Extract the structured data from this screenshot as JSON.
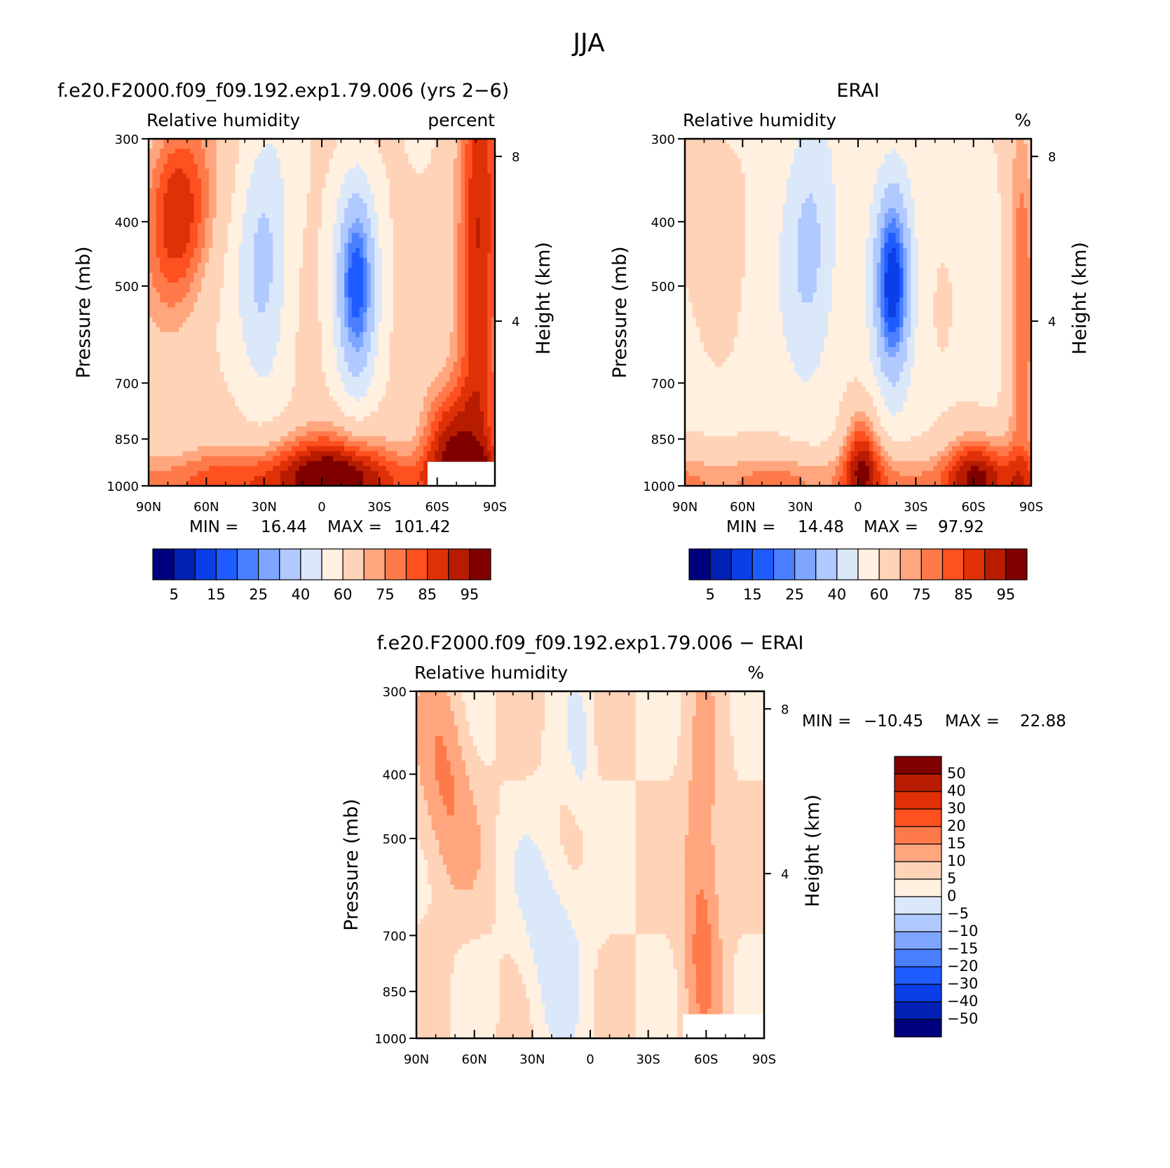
{
  "figure": {
    "title": "JJA"
  },
  "colors": {
    "scale": [
      "#00007f",
      "#0021b3",
      "#0a3ee6",
      "#1f5cff",
      "#4a80ff",
      "#7ea6ff",
      "#b0c9ff",
      "#dbe8fa",
      "#fff0e0",
      "#ffd3b8",
      "#ffa67e",
      "#ff7a4a",
      "#ff5020",
      "#e03008",
      "#b81c00",
      "#800000"
    ],
    "missing": "#ffffff"
  },
  "chart_data": [
    {
      "type": "heatmap",
      "title": "f.e20.F2000.f09_f09.192.exp1.79.006 (yrs 2−6)",
      "variable": "Relative humidity",
      "units": "percent",
      "ylabel": "Pressure (mb)",
      "ylabel_right": "Height (km)",
      "x_ticks": [
        "90N",
        "60N",
        "30N",
        "0",
        "30S",
        "60S",
        "90S"
      ],
      "x_range": [
        90,
        -90
      ],
      "y_ticks": [
        "300",
        "400",
        "500",
        "700",
        "850",
        "1000"
      ],
      "y_range": [
        1000,
        300
      ],
      "y_scale": "log",
      "y_right_ticks": [
        "8",
        "4"
      ],
      "stats": {
        "min_label": "MIN =",
        "min": "16.44",
        "max_label": "MAX =",
        "max": "101.42"
      },
      "colorbar": {
        "orientation": "horizontal",
        "levels": [
          5,
          10,
          15,
          20,
          25,
          30,
          40,
          50,
          60,
          70,
          75,
          80,
          85,
          90,
          95
        ],
        "labels": [
          "5",
          "15",
          "25",
          "40",
          "60",
          "75",
          "85",
          "95"
        ]
      }
    },
    {
      "type": "heatmap",
      "title": "ERAI",
      "variable": "Relative humidity",
      "units": "%",
      "ylabel": "Pressure (mb)",
      "ylabel_right": "Height (km)",
      "x_ticks": [
        "90N",
        "60N",
        "30N",
        "0",
        "30S",
        "60S",
        "90S"
      ],
      "x_range": [
        90,
        -90
      ],
      "y_ticks": [
        "300",
        "400",
        "500",
        "700",
        "850",
        "1000"
      ],
      "y_range": [
        1000,
        300
      ],
      "y_scale": "log",
      "y_right_ticks": [
        "8",
        "4"
      ],
      "stats": {
        "min_label": "MIN =",
        "min": "14.48",
        "max_label": "MAX =",
        "max": "97.92"
      },
      "colorbar": {
        "orientation": "horizontal",
        "levels": [
          5,
          10,
          15,
          20,
          25,
          30,
          40,
          50,
          60,
          70,
          75,
          80,
          85,
          90,
          95
        ],
        "labels": [
          "5",
          "15",
          "25",
          "40",
          "60",
          "75",
          "85",
          "95"
        ]
      }
    },
    {
      "type": "heatmap",
      "title": "f.e20.F2000.f09_f09.192.exp1.79.006 − ERAI",
      "variable": "Relative humidity",
      "units": "%",
      "ylabel": "Pressure (mb)",
      "ylabel_right": "Height (km)",
      "x_ticks": [
        "90N",
        "60N",
        "30N",
        "0",
        "30S",
        "60S",
        "90S"
      ],
      "x_range": [
        90,
        -90
      ],
      "y_ticks": [
        "300",
        "400",
        "500",
        "700",
        "850",
        "1000"
      ],
      "y_range": [
        1000,
        300
      ],
      "y_scale": "log",
      "y_right_ticks": [
        "8",
        "4"
      ],
      "stats": {
        "min_label": "MIN =",
        "min": "−10.45",
        "max_label": "MAX =",
        "max": "22.88"
      },
      "colorbar": {
        "orientation": "vertical",
        "levels": [
          -50,
          -40,
          -30,
          -20,
          -15,
          -10,
          -5,
          0,
          5,
          10,
          15,
          20,
          30,
          40,
          50
        ],
        "labels": [
          "50",
          "40",
          "30",
          "20",
          "15",
          "10",
          "5",
          "0",
          "−5",
          "−10",
          "−15",
          "−20",
          "−30",
          "−40",
          "−50"
        ]
      }
    }
  ]
}
